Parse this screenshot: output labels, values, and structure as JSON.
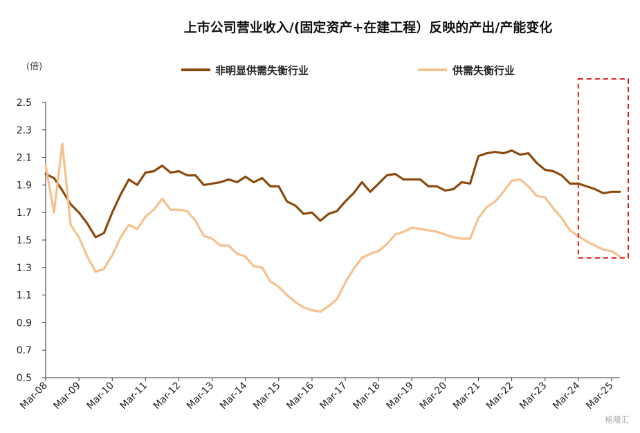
{
  "chart_data": {
    "type": "line",
    "title": "上市公司营业收入/(固定资产+在建工程）反映的产出/产能变化",
    "unit_label": "(倍)",
    "ylim": [
      0.5,
      2.5
    ],
    "yticks": [
      0.5,
      0.7,
      0.9,
      1.1,
      1.3,
      1.5,
      1.7,
      1.9,
      2.1,
      2.3,
      2.5
    ],
    "xlim": [
      2008.0,
      2025.25
    ],
    "xtick_labels": [
      "Mar-08",
      "Mar-09",
      "Mar-10",
      "Mar-11",
      "Mar-12",
      "Mar-13",
      "Mar-14",
      "Mar-15",
      "Mar-16",
      "Mar-17",
      "Mar-18",
      "Mar-19",
      "Mar-20",
      "Mar-21",
      "Mar-22",
      "Mar-23",
      "Mar-24",
      "Mar-25"
    ],
    "grid": false,
    "legend_position": "top",
    "highlight_box": {
      "x_range": [
        2024.0,
        2025.5
      ],
      "y_range": [
        1.37,
        2.67
      ],
      "color": "#e31a1c",
      "style": "dashed"
    },
    "series": [
      {
        "name": "非明显供需失衡行业",
        "color": "#8b4a0e",
        "values": [
          1.98,
          1.95,
          1.86,
          1.76,
          1.7,
          1.62,
          1.52,
          1.55,
          1.7,
          1.83,
          1.94,
          1.9,
          1.99,
          2.0,
          2.04,
          1.99,
          2.0,
          1.97,
          1.97,
          1.9,
          1.91,
          1.92,
          1.94,
          1.92,
          1.96,
          1.92,
          1.95,
          1.89,
          1.89,
          1.78,
          1.75,
          1.69,
          1.7,
          1.64,
          1.69,
          1.71,
          1.78,
          1.84,
          1.92,
          1.85,
          1.91,
          1.97,
          1.98,
          1.94,
          1.94,
          1.94,
          1.89,
          1.89,
          1.86,
          1.87,
          1.92,
          1.91,
          2.11,
          2.13,
          2.14,
          2.13,
          2.15,
          2.12,
          2.13,
          2.06,
          2.01,
          2.0,
          1.97,
          1.91,
          1.91,
          1.89,
          1.87,
          1.84,
          1.85,
          1.85
        ]
      },
      {
        "name": "供需失衡行业",
        "color": "#f7c08c",
        "values": [
          2.04,
          1.7,
          2.2,
          1.61,
          1.52,
          1.38,
          1.27,
          1.29,
          1.39,
          1.52,
          1.61,
          1.58,
          1.67,
          1.72,
          1.8,
          1.72,
          1.72,
          1.71,
          1.64,
          1.53,
          1.51,
          1.46,
          1.46,
          1.4,
          1.38,
          1.31,
          1.3,
          1.2,
          1.16,
          1.1,
          1.05,
          1.01,
          0.99,
          0.98,
          1.02,
          1.07,
          1.19,
          1.29,
          1.37,
          1.4,
          1.42,
          1.47,
          1.54,
          1.56,
          1.59,
          1.58,
          1.57,
          1.56,
          1.54,
          1.52,
          1.51,
          1.51,
          1.66,
          1.74,
          1.78,
          1.85,
          1.93,
          1.94,
          1.89,
          1.82,
          1.81,
          1.73,
          1.66,
          1.57,
          1.53,
          1.49,
          1.46,
          1.43,
          1.42,
          1.38
        ]
      }
    ]
  },
  "watermark": "格隆汇"
}
